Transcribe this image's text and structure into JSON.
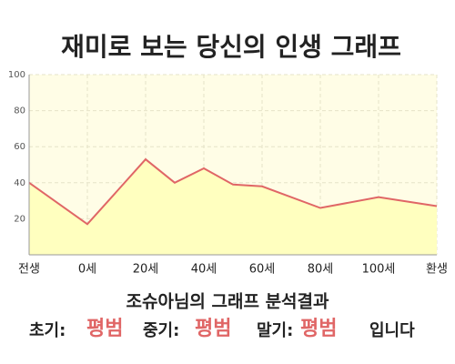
{
  "chart_data": {
    "type": "line",
    "title": "재미로 보는 당신의 인생 그래프",
    "x": [
      -20,
      0,
      20,
      30,
      40,
      50,
      60,
      80,
      100,
      120
    ],
    "values": [
      40,
      17,
      53,
      40,
      48,
      39,
      38,
      26,
      32,
      27
    ],
    "color": "#e06666",
    "fill": "#ffffbf",
    "xlim": [
      -20,
      120
    ],
    "xticks": [
      {
        "value": -20,
        "label": "전생"
      },
      {
        "value": 0,
        "label": "0세"
      },
      {
        "value": 20,
        "label": "20세"
      },
      {
        "value": 40,
        "label": "40세"
      },
      {
        "value": 60,
        "label": "60세"
      },
      {
        "value": 80,
        "label": "80세"
      },
      {
        "value": 100,
        "label": "100세"
      },
      {
        "value": 120,
        "label": "환생"
      }
    ],
    "ylim": [
      0,
      100
    ],
    "yticks": [
      20,
      40,
      60,
      80,
      100
    ],
    "grid": true
  },
  "analysis": {
    "heading": "조슈아님의 그래프 분석결과",
    "items": [
      {
        "label": "초기:",
        "value": "평범"
      },
      {
        "label": "중기:",
        "value": "평범"
      },
      {
        "label": "말기:",
        "value": "평범"
      }
    ],
    "suffix": "입니다"
  }
}
